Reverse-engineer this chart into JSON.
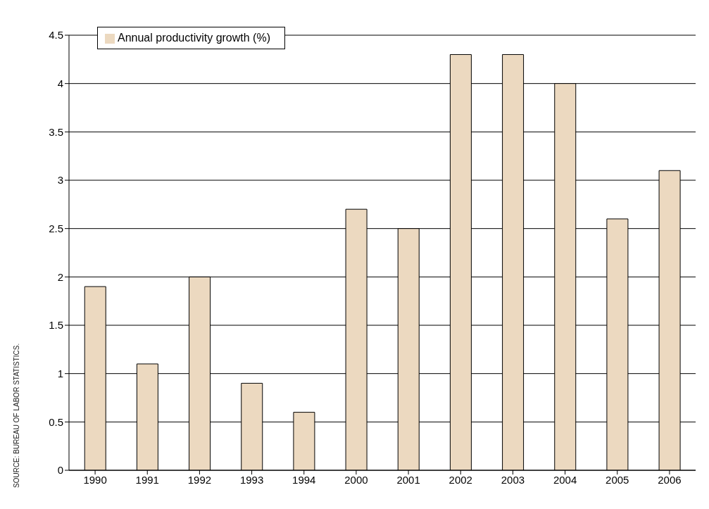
{
  "chart_data": {
    "type": "bar",
    "categories": [
      "1990",
      "1991",
      "1992",
      "1993",
      "1994",
      "2000",
      "2001",
      "2002",
      "2003",
      "2004",
      "2005",
      "2006"
    ],
    "series": [
      {
        "name": "Annual productivity growth (%)",
        "color": "#ecd9c0",
        "values": [
          1.9,
          1.1,
          2.0,
          0.9,
          0.6,
          2.7,
          2.5,
          4.3,
          4.3,
          4.0,
          2.6,
          3.1
        ]
      }
    ],
    "ylim": [
      0,
      4.5
    ],
    "yticks": [
      0,
      0.5,
      1,
      1.5,
      2,
      2.5,
      3,
      3.5,
      4,
      4.5
    ],
    "grid": "y",
    "legend": "top left",
    "annotations": [
      "SOURCE: BUREAU OF LABOR STATISTICS."
    ]
  }
}
